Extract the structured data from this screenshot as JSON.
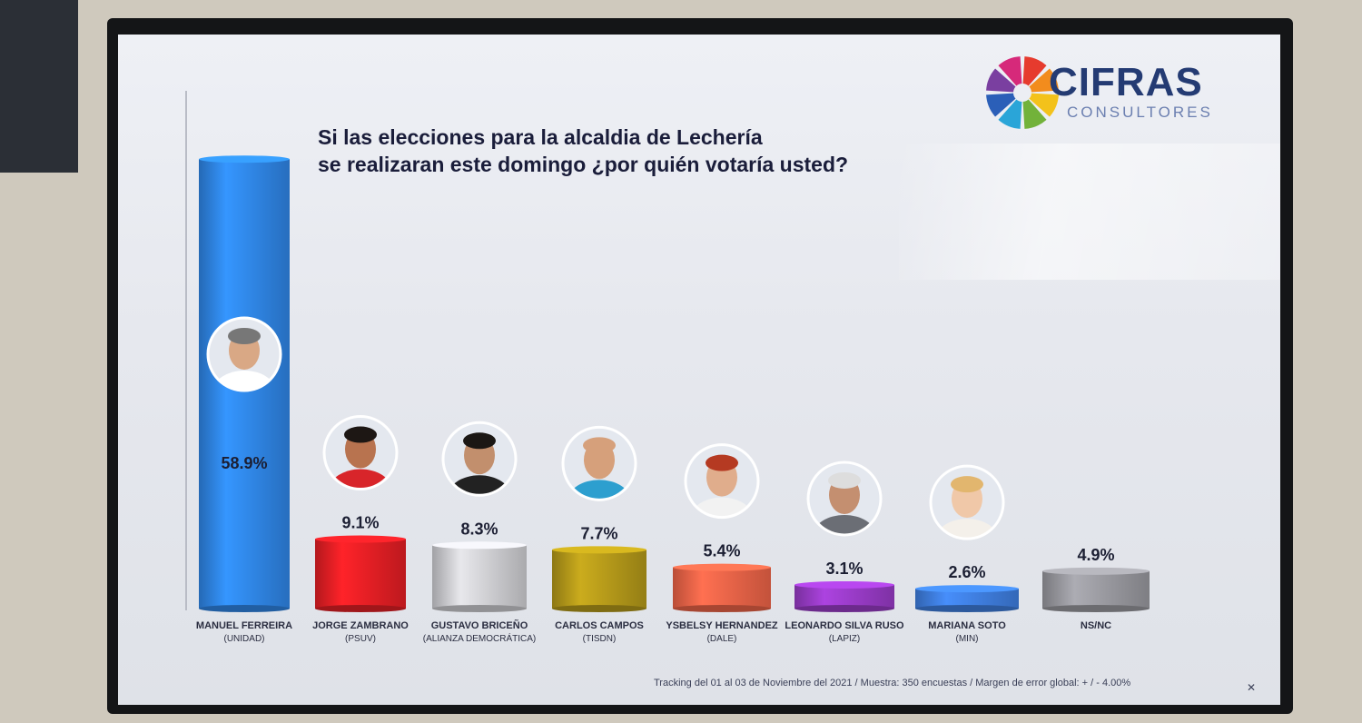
{
  "brand": {
    "name": "CIFRAS",
    "tagline": "CONSULTORES",
    "wheel_colors": [
      "#e63b2e",
      "#f28c1d",
      "#f3c21b",
      "#72b23a",
      "#2aa5d8",
      "#2b5fb8",
      "#7a3fa0",
      "#d6297a"
    ]
  },
  "footnote": "Tracking del 01 al 03 de Noviembre del 2021 / Muestra: 350 encuestas / Margen de error global: + / - 4.00%",
  "close_glyph": "✕",
  "chart_data": {
    "type": "bar",
    "title": "Si las elecciones para la alcaldia de Lechería se realizaran este domingo ¿por quién votaría usted?",
    "xlabel": "",
    "ylabel": "",
    "ylim": [
      0,
      60
    ],
    "grid": false,
    "categories": [
      {
        "name": "MANUEL FERREIRA",
        "party": "(UNIDAD)",
        "value": 58.9,
        "label": "58.9%",
        "color": "#2f86e8",
        "photo": true,
        "skin": "#d9a885",
        "hair": "#777777",
        "shirt": "#ffffff"
      },
      {
        "name": "JORGE ZAMBRANO",
        "party": "(PSUV)",
        "value": 9.1,
        "label": "9.1%",
        "color": "#e51f25",
        "photo": true,
        "skin": "#b8734f",
        "hair": "#1d1714",
        "shirt": "#d8252a"
      },
      {
        "name": "GUSTAVO BRICEÑO",
        "party": "(ALIANZA DEMOCRÁTICA)",
        "value": 8.3,
        "label": "8.3%",
        "color": "#cfcfd3",
        "photo": true,
        "skin": "#c28f6d",
        "hair": "#1b1714",
        "shirt": "#222222"
      },
      {
        "name": "CARLOS CAMPOS",
        "party": "(TISDN)",
        "value": 7.7,
        "label": "7.7%",
        "color": "#b59a1a",
        "photo": true,
        "skin": "#d6a07b",
        "hair": "#d6a07b",
        "shirt": "#2d9fcf"
      },
      {
        "name": "YSBELSY HERNANDEZ",
        "party": "(DALE)",
        "value": 5.4,
        "label": "5.4%",
        "color": "#ee6448",
        "photo": true,
        "skin": "#e0ad8c",
        "hair": "#b53a22",
        "shirt": "#f2f2f2"
      },
      {
        "name": "LEONARDO SILVA RUSO",
        "party": "(LAPIZ)",
        "value": 3.1,
        "label": "3.1%",
        "color": "#9a3cc8",
        "photo": true,
        "skin": "#c48f70",
        "hair": "#dddddd",
        "shirt": "#6b6e75"
      },
      {
        "name": "MARIANA SOTO",
        "party": "(MIN)",
        "value": 2.6,
        "label": "2.6%",
        "color": "#3f7fe0",
        "photo": true,
        "skin": "#f0c8a8",
        "hair": "#e2b66e",
        "shirt": "#f4f0ea"
      },
      {
        "name": "NS/NC",
        "party": "",
        "value": 4.9,
        "label": "4.9%",
        "color": "#9a9aa0",
        "photo": false
      }
    ]
  }
}
